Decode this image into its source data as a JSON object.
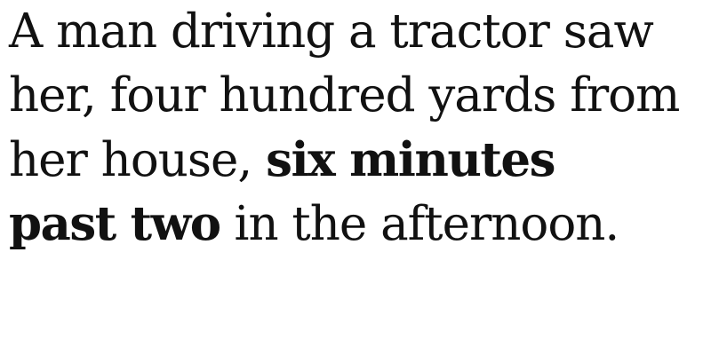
{
  "passage": {
    "line1": "A man driving a tractor saw",
    "line2": "her, four hundred yards from",
    "line3_regular": "her house, ",
    "line3_bold": "six minutes",
    "line4_bold": "past two",
    "line4_regular": " in the afternoon."
  },
  "colors": {
    "text": "#111111",
    "background": "#ffffff"
  }
}
